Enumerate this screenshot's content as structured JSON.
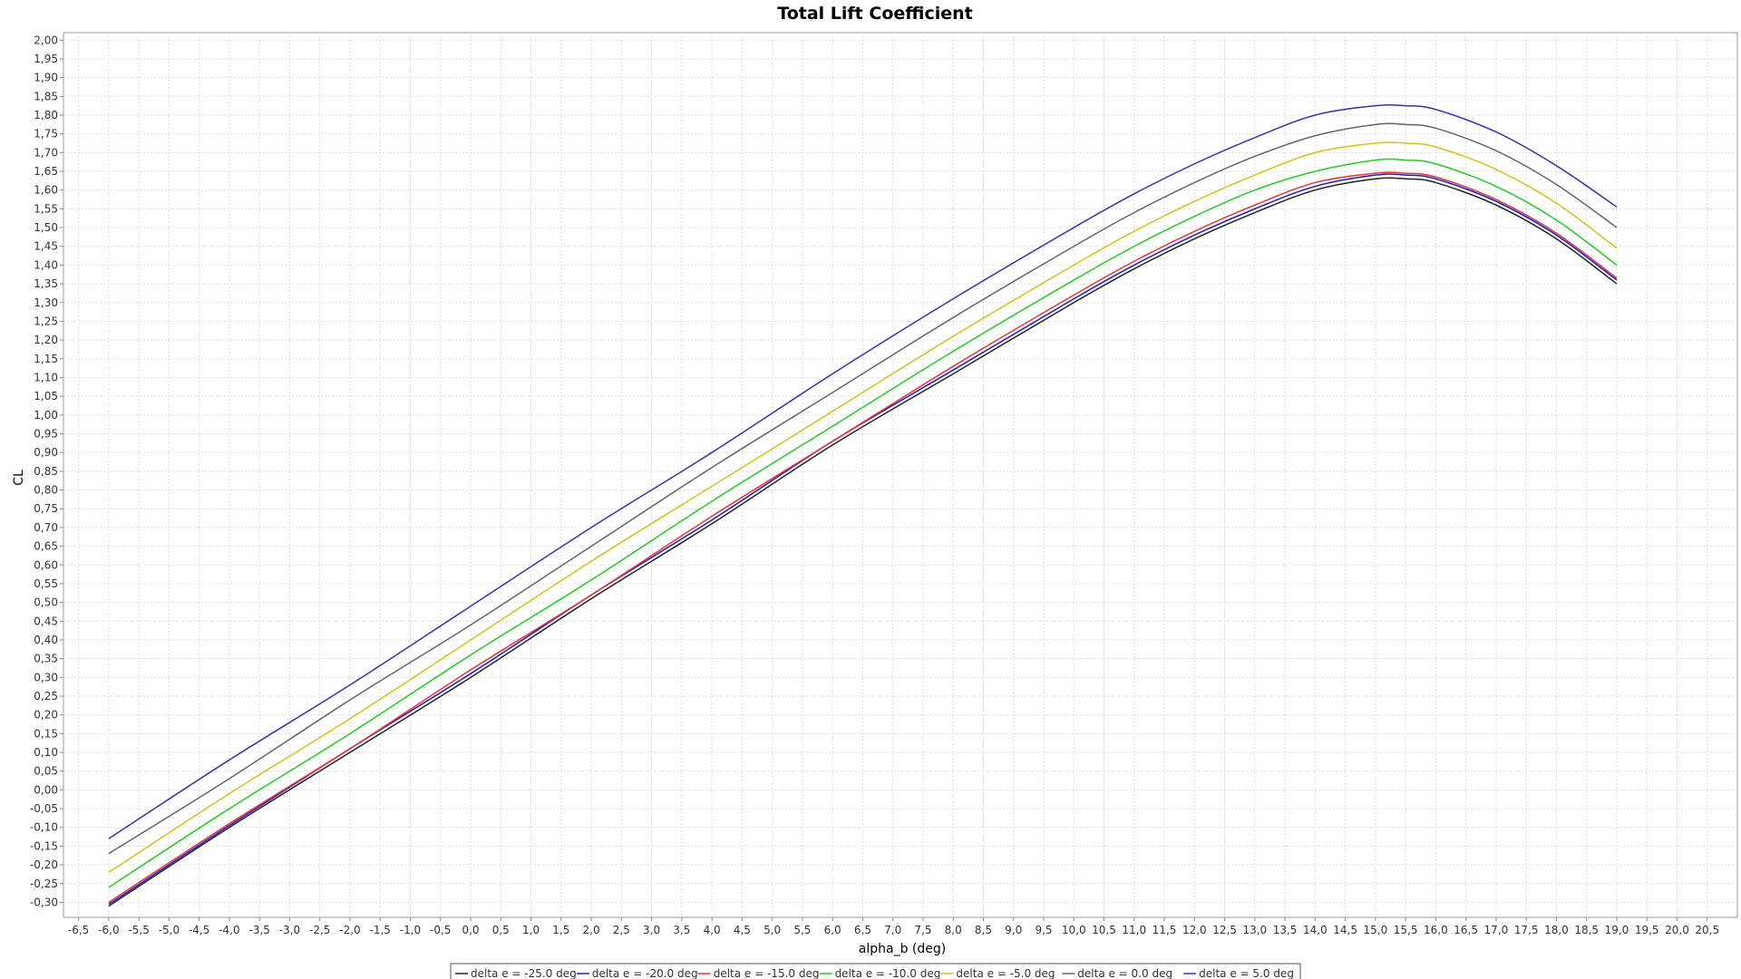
{
  "chart_data": {
    "type": "line",
    "title": "Total Lift Coefficient",
    "xlabel": "alpha_b (deg)",
    "ylabel": "CL",
    "xlim": [
      -6.75,
      21.0
    ],
    "ylim": [
      -0.34,
      2.02
    ],
    "x_ticks": [
      "-6,5",
      "-6,0",
      "-5,5",
      "-5,0",
      "-4,5",
      "-4,0",
      "-3,5",
      "-3,0",
      "-2,5",
      "-2,0",
      "-1,5",
      "-1,0",
      "-0,5",
      "0,0",
      "0,5",
      "1,0",
      "1,5",
      "2,0",
      "2,5",
      "3,0",
      "3,5",
      "4,0",
      "4,5",
      "5,0",
      "5,5",
      "6,0",
      "6,5",
      "7,0",
      "7,5",
      "8,0",
      "8,5",
      "9,0",
      "9,5",
      "10,0",
      "10,5",
      "11,0",
      "11,5",
      "12,0",
      "12,5",
      "13,0",
      "13,5",
      "14,0",
      "14,5",
      "15,0",
      "15,5",
      "16,0",
      "16,5",
      "17,0",
      "17,5",
      "18,0",
      "18,5",
      "19,0",
      "19,5",
      "20,0",
      "20,5"
    ],
    "y_ticks": [
      "-0,30",
      "-0,25",
      "-0,20",
      "-0,15",
      "-0,10",
      "-0,05",
      "0,00",
      "0,05",
      "0,10",
      "0,15",
      "0,20",
      "0,25",
      "0,30",
      "0,35",
      "0,40",
      "0,45",
      "0,50",
      "0,55",
      "0,60",
      "0,65",
      "0,70",
      "0,75",
      "0,80",
      "0,85",
      "0,90",
      "0,95",
      "1,00",
      "1,05",
      "1,10",
      "1,15",
      "1,20",
      "1,25",
      "1,30",
      "1,35",
      "1,40",
      "1,45",
      "1,50",
      "1,55",
      "1,60",
      "1,65",
      "1,70",
      "1,75",
      "1,80",
      "1,85",
      "1,90",
      "1,95",
      "2,00"
    ],
    "grid": true,
    "legend_position": "bottom",
    "x": [
      -6,
      -4,
      -2,
      0,
      2,
      4,
      6,
      8,
      10,
      11,
      12,
      13,
      14,
      15,
      15.5,
      16,
      17,
      18,
      19
    ],
    "series": [
      {
        "name": "delta e =  -25.0 deg",
        "color": "#222222",
        "values": [
          -0.31,
          -0.1,
          0.1,
          0.3,
          0.51,
          0.71,
          0.92,
          1.11,
          1.3,
          1.39,
          1.47,
          1.54,
          1.6,
          1.63,
          1.63,
          1.62,
          1.56,
          1.47,
          1.35
        ]
      },
      {
        "name": "delta e =  -20.0 deg",
        "color": "#1a1acc",
        "values": [
          -0.305,
          -0.095,
          0.11,
          0.31,
          0.52,
          0.72,
          0.93,
          1.12,
          1.31,
          1.4,
          1.48,
          1.55,
          1.61,
          1.64,
          1.64,
          1.63,
          1.57,
          1.48,
          1.36
        ]
      },
      {
        "name": "delta e =  -15.0 deg",
        "color": "#ee3333",
        "values": [
          -0.3,
          -0.09,
          0.11,
          0.32,
          0.52,
          0.73,
          0.93,
          1.13,
          1.32,
          1.41,
          1.49,
          1.56,
          1.62,
          1.645,
          1.645,
          1.635,
          1.575,
          1.485,
          1.365
        ]
      },
      {
        "name": "delta e =  -10.0 deg",
        "color": "#22cc22",
        "values": [
          -0.26,
          -0.05,
          0.15,
          0.36,
          0.56,
          0.77,
          0.97,
          1.17,
          1.36,
          1.45,
          1.53,
          1.6,
          1.65,
          1.68,
          1.68,
          1.67,
          1.61,
          1.52,
          1.4
        ]
      },
      {
        "name": "delta e =  -5.0 deg",
        "color": "#d4c21a",
        "values": [
          -0.22,
          -0.01,
          0.19,
          0.4,
          0.61,
          0.81,
          1.01,
          1.21,
          1.4,
          1.49,
          1.57,
          1.64,
          1.7,
          1.725,
          1.725,
          1.715,
          1.655,
          1.565,
          1.445
        ]
      },
      {
        "name": "delta e =  0.0 deg",
        "color": "#666666",
        "values": [
          -0.17,
          0.03,
          0.24,
          0.44,
          0.65,
          0.86,
          1.06,
          1.26,
          1.45,
          1.54,
          1.62,
          1.69,
          1.745,
          1.775,
          1.775,
          1.765,
          1.705,
          1.615,
          1.5
        ]
      },
      {
        "name": "delta e =  5.0 deg",
        "color": "#3333bb",
        "values": [
          -0.13,
          0.08,
          0.28,
          0.49,
          0.7,
          0.9,
          1.11,
          1.31,
          1.5,
          1.59,
          1.67,
          1.74,
          1.8,
          1.825,
          1.825,
          1.815,
          1.755,
          1.665,
          1.555
        ]
      }
    ]
  }
}
